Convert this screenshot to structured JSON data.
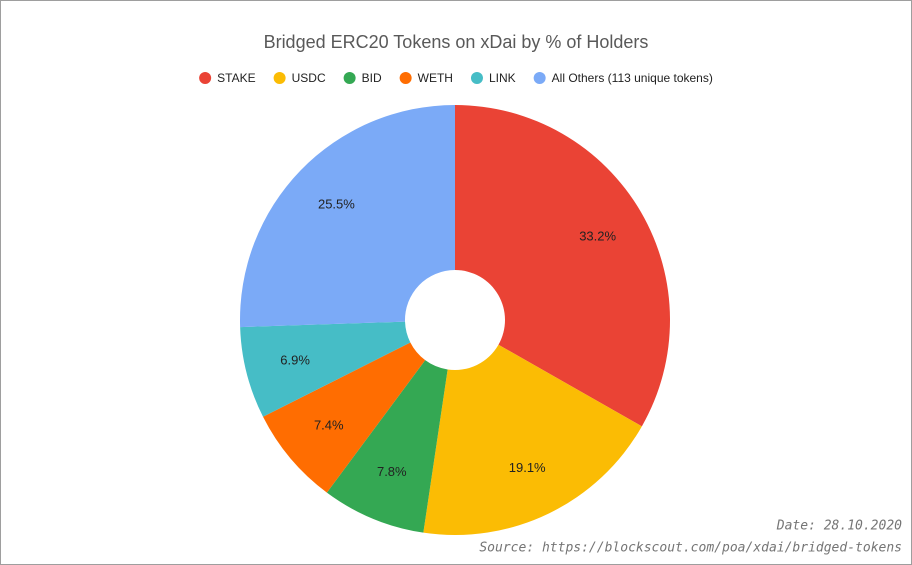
{
  "chart_data": {
    "type": "donut",
    "title": "Bridged ERC20 Tokens on xDai by % of Holders",
    "categories": [
      "STAKE",
      "USDC",
      "BID",
      "WETH",
      "LINK",
      "All Others (113 unique tokens)"
    ],
    "values": [
      33.2,
      19.1,
      7.8,
      7.4,
      6.9,
      25.5
    ],
    "value_labels": [
      "33.2%",
      "19.1%",
      "7.8%",
      "7.4%",
      "6.9%",
      "25.5%"
    ],
    "colors": [
      "#ea4335",
      "#fbbc04",
      "#34a853",
      "#ff6d01",
      "#46bdc6",
      "#7baaf7"
    ],
    "legend": "top",
    "date_note": "Date: 28.10.2020",
    "source_note": "Source:  https://blockscout.com/poa/xdai/bridged-tokens"
  }
}
